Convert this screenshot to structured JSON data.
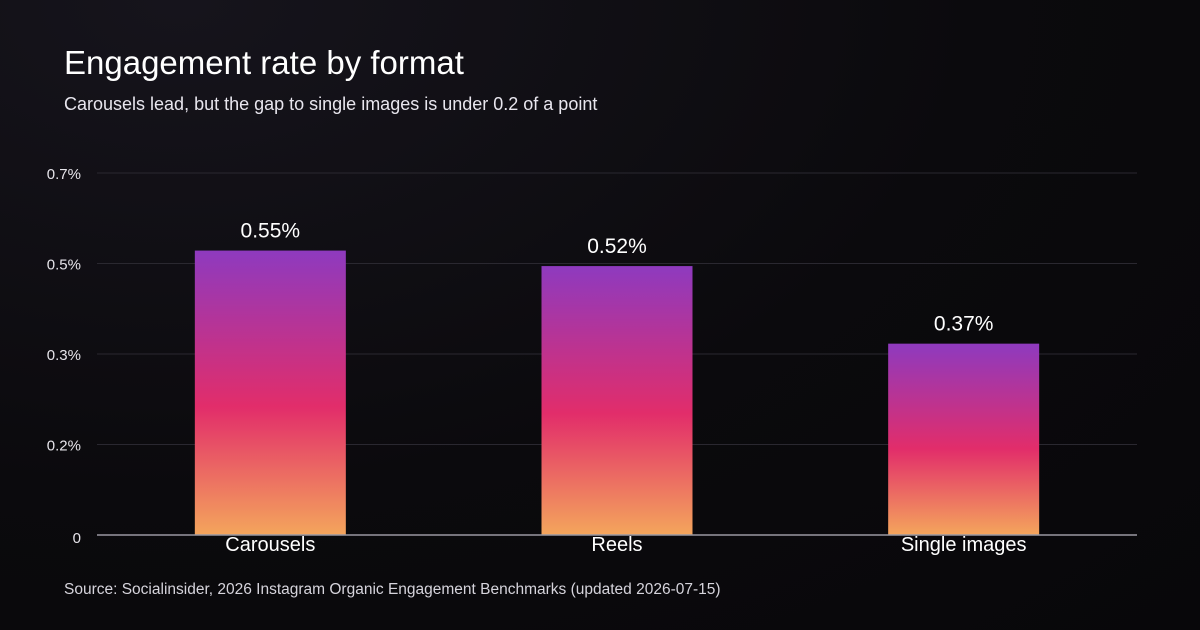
{
  "header": {
    "title": "Engagement rate by format",
    "subtitle": "Carousels lead, but the gap to single images is under 0.2 of a point"
  },
  "footer": {
    "source": "Source: Socialinsider, 2026 Instagram Organic Engagement Benchmarks (updated 2026-07-15)"
  },
  "colors": {
    "background": "#0b0a0d",
    "bar_top": "#8e3abf",
    "bar_mid": "#e22d6a",
    "bar_bottom": "#f4a55c",
    "gridline": "#2a2830",
    "axis": "#9a98a2"
  },
  "chart_data": {
    "type": "bar",
    "title": "Engagement rate by format",
    "subtitle": "Carousels lead, but the gap to single images is under 0.2 of a point",
    "xlabel": "",
    "ylabel": "",
    "categories": [
      "Carousels",
      "Reels",
      "Single images"
    ],
    "values": [
      0.55,
      0.52,
      0.37
    ],
    "data_labels": [
      "0.55%",
      "0.52%",
      "0.37%"
    ],
    "ylim": [
      0,
      0.7
    ],
    "yticks": [
      0,
      0.175,
      0.35,
      0.525,
      0.7
    ],
    "ytick_labels": [
      "0",
      "0.2%",
      "0.3%",
      "0.5%",
      "0.7%"
    ],
    "grid": true,
    "legend": "none"
  }
}
